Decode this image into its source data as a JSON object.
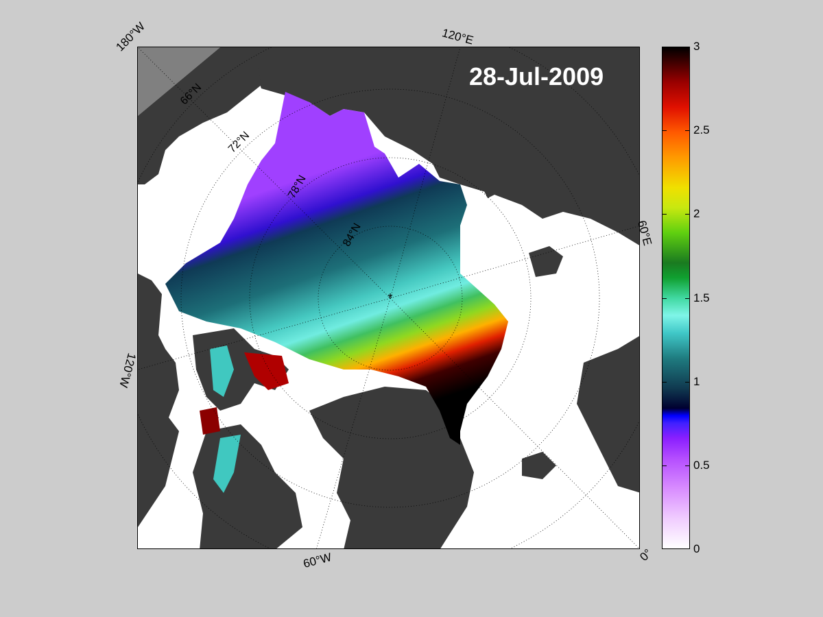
{
  "date_label": "28-Jul-2009",
  "edge_labels": {
    "w180": "180°W",
    "e120": "120°E",
    "e60": "60°E",
    "w120": "120°W",
    "w60": "60°W",
    "zero": "0°"
  },
  "latitude_labels": {
    "n66": "66°N",
    "n72": "72°N",
    "n78": "78°N",
    "n84": "84°N"
  },
  "colorbar": {
    "min": 0,
    "max": 3,
    "ticks": [
      "0",
      "0.5",
      "1",
      "1.5",
      "2",
      "2.5",
      "3"
    ]
  },
  "colors": {
    "figure_background": "#cccccc",
    "land": "#3a3a3a",
    "land_outside_domain": "#808080",
    "open_water": "#ffffff",
    "grid": "#000000"
  }
}
